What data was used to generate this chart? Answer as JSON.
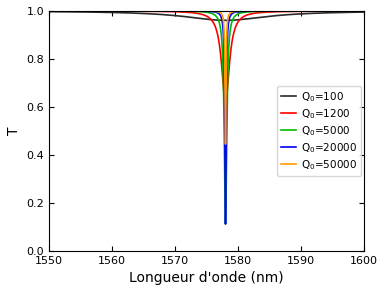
{
  "lambda_min": 1550,
  "lambda_max": 1600,
  "lambda_res": 1578.0,
  "Qc": 10000,
  "Q0_values": [
    100,
    1200,
    5000,
    20000,
    50000
  ],
  "colors": [
    "#2b2b2b",
    "#ff0000",
    "#00bb00",
    "#0000ff",
    "#ff9900"
  ],
  "labels": [
    "Q$_0$=100",
    "Q$_0$=1200",
    "Q$_0$=5000",
    "Q$_0$=20000",
    "Q$_0$=50000"
  ],
  "linewidth": 1.2,
  "xlabel": "Longueur d'onde (nm)",
  "ylabel": "T",
  "ylim": [
    0.0,
    1.0
  ],
  "xlim": [
    1550,
    1600
  ],
  "xticks": [
    1550,
    1560,
    1570,
    1580,
    1590,
    1600
  ],
  "yticks": [
    0.0,
    0.2,
    0.4,
    0.6,
    0.8,
    1.0
  ]
}
